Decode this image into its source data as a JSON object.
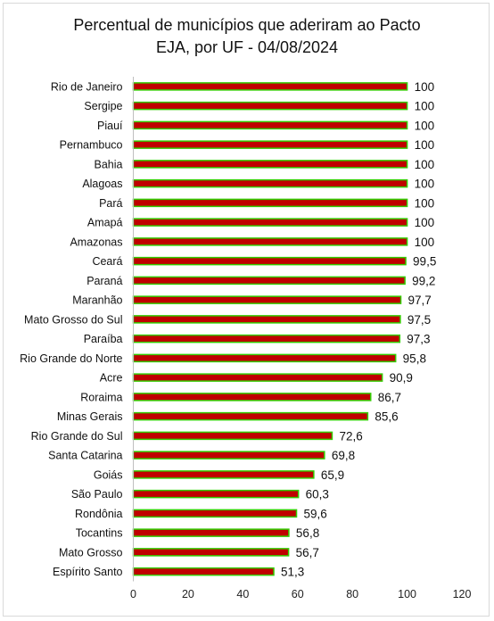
{
  "chart_data": {
    "type": "bar",
    "orientation": "horizontal",
    "title_line1": "Percentual de municípios que aderiram ao Pacto",
    "title_line2": "EJA, por UF - 04/08/2024",
    "categories": [
      "Rio de Janeiro",
      "Sergipe",
      "Piauí",
      "Pernambuco",
      "Bahia",
      "Alagoas",
      "Pará",
      "Amapá",
      "Amazonas",
      "Ceará",
      "Paraná",
      "Maranhão",
      "Mato Grosso do Sul",
      "Paraíba",
      "Rio Grande do Norte",
      "Acre",
      "Roraima",
      "Minas Gerais",
      "Rio Grande do Sul",
      "Santa Catarina",
      "Goiás",
      "São Paulo",
      "Rondônia",
      "Tocantins",
      "Mato Grosso",
      "Espírito Santo"
    ],
    "values": [
      100,
      100,
      100,
      100,
      100,
      100,
      100,
      100,
      100,
      99.5,
      99.2,
      97.7,
      97.5,
      97.3,
      95.8,
      90.9,
      86.7,
      85.6,
      72.6,
      69.8,
      65.9,
      60.3,
      59.6,
      56.8,
      56.7,
      51.3
    ],
    "value_labels": [
      "100",
      "100",
      "100",
      "100",
      "100",
      "100",
      "100",
      "100",
      "100",
      "99,5",
      "99,2",
      "97,7",
      "97,5",
      "97,3",
      "95,8",
      "90,9",
      "86,7",
      "85,6",
      "72,6",
      "69,8",
      "65,9",
      "60,3",
      "59,6",
      "56,8",
      "56,7",
      "51,3"
    ],
    "xlim": [
      0,
      120
    ],
    "xticks": [
      "0",
      "20",
      "40",
      "60",
      "80",
      "100",
      "120"
    ],
    "grid": false,
    "legend": "none",
    "colors": {
      "bar_fill": "#c00000",
      "bar_outline": "#33cc00",
      "axis": "#bfbfbf",
      "frame": "#d9d9d9"
    }
  }
}
